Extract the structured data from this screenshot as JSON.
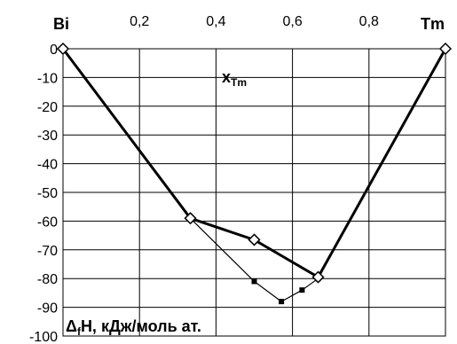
{
  "chart_data": {
    "type": "line",
    "corner_left": "Bi",
    "corner_right": "Tm",
    "xlabel": {
      "main": "x",
      "sub": "Tm"
    },
    "ylabel": {
      "prefix": "Δ",
      "sub": "f",
      "rest": "H, кДж/моль ат."
    },
    "xlim": [
      0,
      1
    ],
    "ylim": [
      -100,
      0
    ],
    "x_ticks": [
      "0,2",
      "0,4",
      "0,6",
      "0,8"
    ],
    "x_tick_values": [
      0.2,
      0.4,
      0.6,
      0.8
    ],
    "y_ticks": [
      "0",
      "-10",
      "-20",
      "-30",
      "-40",
      "-50",
      "-60",
      "-70",
      "-80",
      "-90",
      "-100"
    ],
    "y_tick_values": [
      0,
      -10,
      -20,
      -30,
      -40,
      -50,
      -60,
      -70,
      -80,
      -90,
      -100
    ],
    "grid": true,
    "colors": {
      "line": "#000000",
      "grid": "#000000",
      "marker_fill": "#ffffff"
    },
    "series": [
      {
        "marker": "diamond-open",
        "line": "thick",
        "points": [
          [
            0,
            0
          ],
          [
            0.333,
            -59
          ],
          [
            0.5,
            -66.5
          ],
          [
            0.667,
            -79.5
          ],
          [
            1,
            0
          ]
        ]
      },
      {
        "marker": "square-filled",
        "line": "thin",
        "points": [
          [
            0,
            0
          ],
          [
            0.333,
            -59
          ],
          [
            0.5,
            -81
          ],
          [
            0.571,
            -88
          ],
          [
            0.625,
            -84
          ],
          [
            0.667,
            -80
          ],
          [
            1,
            0
          ]
        ]
      }
    ]
  }
}
